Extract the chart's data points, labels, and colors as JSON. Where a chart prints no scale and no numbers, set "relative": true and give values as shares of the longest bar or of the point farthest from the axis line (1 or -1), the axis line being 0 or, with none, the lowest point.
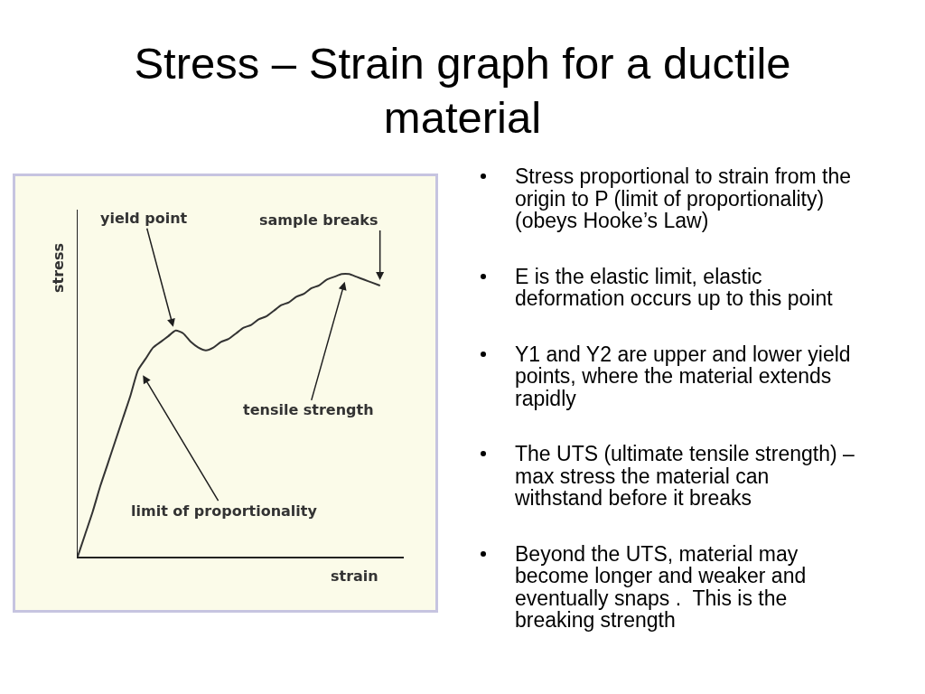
{
  "chart_data": {
    "type": "line",
    "title": "Stress – Strain graph for a ductile material",
    "xlabel": "strain",
    "ylabel": "stress",
    "relative": true,
    "categories": [
      null,
      null,
      null,
      null,
      null,
      null,
      null,
      null,
      null,
      null,
      null,
      null,
      null,
      null,
      null,
      null,
      null,
      null,
      null,
      null,
      null,
      null,
      null,
      null,
      null,
      null,
      null,
      null,
      null,
      null,
      null,
      null,
      null,
      null,
      null,
      null,
      null,
      null,
      null,
      null,
      null
    ],
    "series": [
      {
        "color": "#333333",
        "values": [
          0,
          0.08,
          0.16,
          0.25,
          0.33,
          0.41,
          0.49,
          0.57,
          0.66,
          0.7,
          0.74,
          0.76,
          0.78,
          0.8,
          0.79,
          0.76,
          0.74,
          0.73,
          0.74,
          0.76,
          0.77,
          0.79,
          0.81,
          0.82,
          0.84,
          0.85,
          0.87,
          0.89,
          0.9,
          0.92,
          0.93,
          0.95,
          0.96,
          0.98,
          0.99,
          1.0,
          1.0,
          0.99,
          0.98,
          0.97,
          0.96
        ]
      }
    ],
    "line_style": "solid",
    "annotations": [
      "yield point",
      "sample breaks",
      "tensile strength",
      "limit of proportionality",
      "Stress proportional to strain from the origin to P (limit of proportionality) (obeys Hooke’s Law)",
      "E is the elastic limit, elastic deformation occurs up to this point",
      "Y1 and Y2 are upper and lower yield points, where the material extends rapidly",
      "The UTS (ultimate tensile strength) – max stress the material can withstand before it breaks",
      "Beyond the UTS, material may become longer and weaker and eventually snaps .  This is the breaking strength"
    ]
  }
}
